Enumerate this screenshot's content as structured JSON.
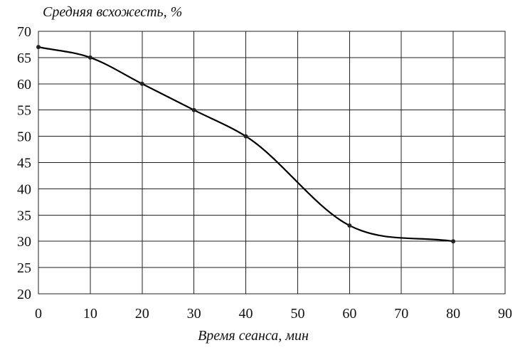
{
  "chart_data": {
    "type": "line",
    "ylabel": "Средняя всхожесть, %",
    "xlabel": "Время сеанса, мин",
    "xlim": [
      0,
      90
    ],
    "ylim": [
      20,
      70
    ],
    "x_ticks": [
      "0",
      "10",
      "20",
      "30",
      "40",
      "50",
      "60",
      "70",
      "80",
      "90"
    ],
    "y_ticks": [
      "20",
      "25",
      "30",
      "35",
      "40",
      "45",
      "50",
      "55",
      "60",
      "65",
      "70"
    ],
    "grid": true,
    "smooth": true,
    "series": [
      {
        "x": [
          0,
          10,
          20,
          30,
          40,
          60,
          80
        ],
        "y": [
          67,
          65,
          60,
          55,
          50,
          33,
          30
        ]
      }
    ]
  }
}
